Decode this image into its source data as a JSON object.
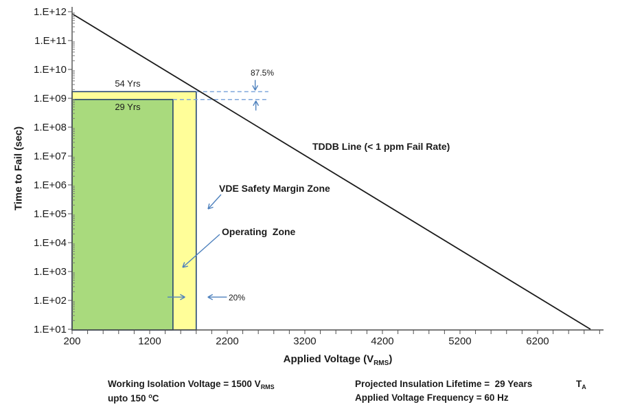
{
  "chart_data": {
    "type": "line",
    "title": "",
    "xlabel": {
      "pre": "Applied Voltage (V",
      "sub": "RMS",
      "post": ")"
    },
    "ylabel": "Time to Fail (sec)",
    "x_axis": {
      "min": 200,
      "max": 7050,
      "major_tick_values": [
        200,
        1200,
        2200,
        3200,
        4200,
        5200,
        6200
      ],
      "major_tick_labels": [
        "200",
        "1200",
        "2200",
        "3200",
        "4200",
        "5200",
        "6200"
      ],
      "minor_tick_step": 200
    },
    "y_axis": {
      "scale": "log",
      "min": 10,
      "max": 1000000000000.0,
      "tick_values": [
        10.0,
        100.0,
        1000.0,
        10000.0,
        100000.0,
        1000000.0,
        10000000.0,
        100000000.0,
        1000000000.0,
        10000000000.0,
        100000000000.0,
        1000000000000.0
      ],
      "tick_labels": [
        "1.E+01",
        "1.E+02",
        "1.E+03",
        "1.E+04",
        "1.E+05",
        "1.E+06",
        "1.E+07",
        "1.E+08",
        "1.E+09",
        "1.E+10",
        "1.E+11",
        "1.E+12"
      ]
    },
    "grid": false,
    "tddb_line": {
      "label": "TDDB Line (< 1 ppm Fail Rate)",
      "color": "#1b1b1b",
      "points": [
        [
          200,
          850000000000.0
        ],
        [
          6882,
          10
        ]
      ]
    },
    "zones": [
      {
        "id": "vde-safety-margin",
        "label": "VDE Safety Margin Zone",
        "year_label": "54 Yrs",
        "x_range": [
          200,
          1800
        ],
        "y_range": [
          10,
          1700000000.0
        ],
        "fill": "#FFFE99",
        "border": "#24456E"
      },
      {
        "id": "operating",
        "label": "Operating  Zone",
        "year_label": "29 Yrs",
        "x_range": [
          200,
          1500
        ],
        "y_range": [
          10,
          910000000.0
        ],
        "fill": "#A9DA7D",
        "border": "#24456E"
      }
    ],
    "annotations": {
      "lifetime_margin": {
        "label": "87.5%",
        "upper_value": 1700000000.0,
        "lower_value": 910000000.0,
        "dash_start_voltages": [
          1800,
          1500
        ],
        "dash_end_voltage": 2730,
        "arrow_voltage": 2560
      },
      "voltage_margin": {
        "label": "20%",
        "y_value": 130,
        "right_arrow_voltages": [
          1430,
          1655
        ],
        "left_arrow_voltages": [
          2195,
          1950
        ]
      },
      "dash_color": "#7EA6DB",
      "arrow_color": "#4E81BD"
    }
  },
  "footer": {
    "left_line1_pre": "Working Isolation Voltage = 1500 V",
    "left_line1_sub": "RMS",
    "left_line2_pre": "upto 150 ",
    "left_line2_sup": "o",
    "left_line2_post": "C",
    "right_line1": "Projected Insulation Lifetime =  29 Years",
    "right_line2": "Applied Voltage Frequency = 60 Hz",
    "ta_pre": "T",
    "ta_sub": "A"
  }
}
